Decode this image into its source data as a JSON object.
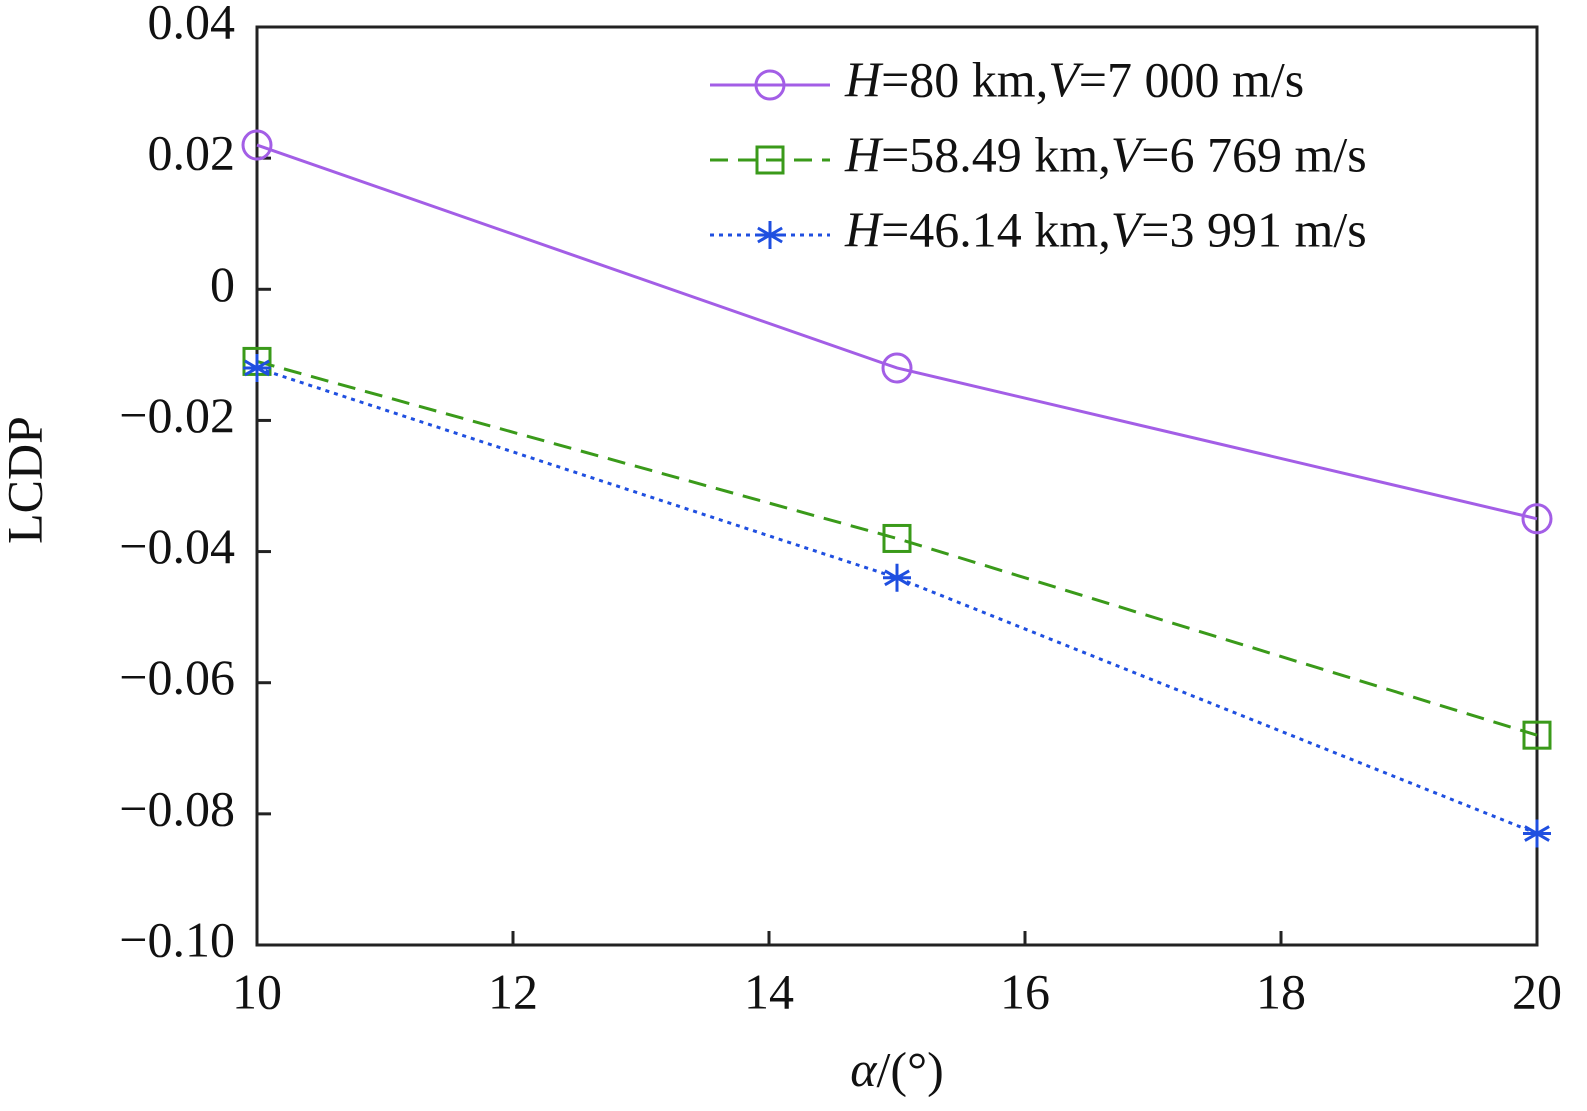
{
  "chart_data": {
    "type": "line",
    "x_label": "α/(°)",
    "y_label": "LCDP",
    "x": [
      10,
      15,
      20
    ],
    "series": [
      {
        "name": "H=80 km,V=7 000 m/s",
        "color": "#a35ee6",
        "marker": "circle",
        "linestyle": "solid",
        "values": [
          0.022,
          -0.012,
          -0.035
        ]
      },
      {
        "name": "H=58.49 km,V=6 769 m/s",
        "color": "#3a9a1a",
        "marker": "square",
        "linestyle": "dashed",
        "values": [
          -0.011,
          -0.038,
          -0.068
        ]
      },
      {
        "name": "H=46.14 km,V=3 991 m/s",
        "color": "#1f4fe0",
        "marker": "asterisk",
        "linestyle": "dotted",
        "values": [
          -0.012,
          -0.044,
          -0.083
        ]
      }
    ],
    "xlim": [
      10,
      20
    ],
    "xticks": [
      10,
      12,
      14,
      16,
      18,
      20
    ],
    "ylim": [
      -0.1,
      0.04
    ],
    "yticks": [
      0.04,
      0.02,
      0,
      {
        "value": -0.02,
        "label": "−0.02"
      },
      {
        "value": -0.04,
        "label": "−0.04"
      },
      {
        "value": -0.06,
        "label": "−0.06"
      },
      {
        "value": -0.08,
        "label": "−0.08"
      },
      {
        "value": -0.1,
        "label": "−0.10"
      }
    ],
    "legend": "upper right"
  }
}
